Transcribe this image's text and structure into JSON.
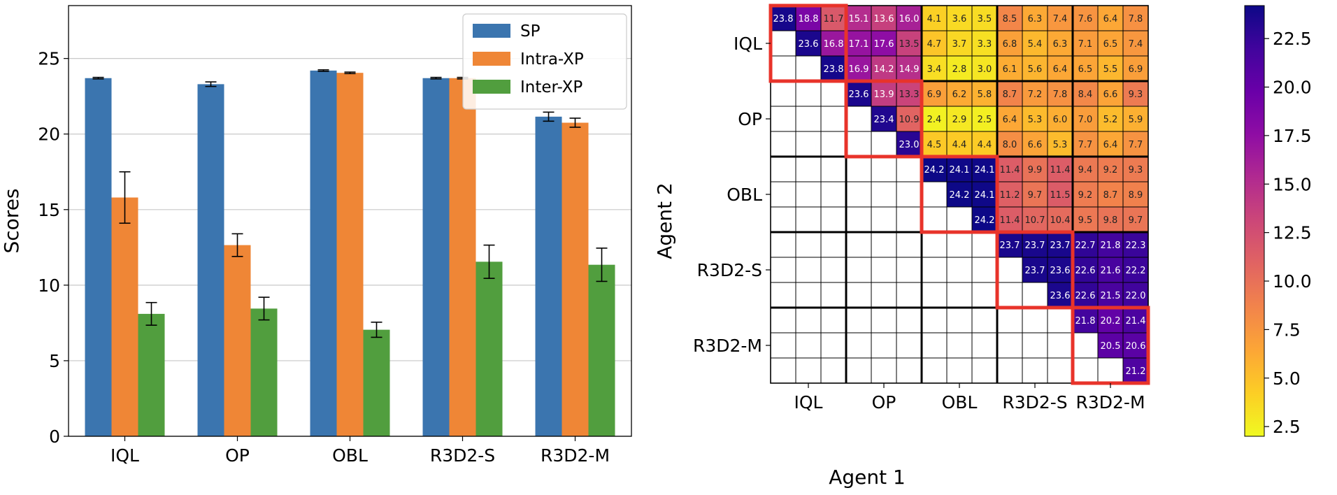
{
  "chart_data": [
    {
      "type": "bar",
      "categories": [
        "IQL",
        "OP",
        "OBL",
        "R3D2-S",
        "R3D2-M"
      ],
      "ylabel": "Scores",
      "xlabel": "",
      "ylim": [
        0,
        28.5
      ],
      "yticks": [
        0,
        5,
        10,
        15,
        20,
        25
      ],
      "grid": "horizontal",
      "legend_position": "top-right",
      "series": [
        {
          "name": "SP",
          "color": "#3b75af",
          "values": [
            23.7,
            23.3,
            24.2,
            23.7,
            21.15
          ],
          "errors": [
            0.05,
            0.15,
            0.05,
            0.05,
            0.3
          ]
        },
        {
          "name": "Intra-XP",
          "color": "#ef8636",
          "values": [
            15.8,
            12.65,
            24.05,
            23.7,
            20.75
          ],
          "errors": [
            1.7,
            0.75,
            0.05,
            0.05,
            0.3
          ]
        },
        {
          "name": "Inter-XP",
          "color": "#519e3e",
          "values": [
            8.1,
            8.45,
            7.05,
            11.55,
            11.35
          ],
          "errors": [
            0.75,
            0.75,
            0.5,
            1.1,
            1.1
          ]
        }
      ]
    },
    {
      "type": "heatmap",
      "xlabel": "Agent 1",
      "ylabel": "Agent 2",
      "groups": [
        "IQL",
        "OP",
        "OBL",
        "R3D2-S",
        "R3D2-M"
      ],
      "colorscale": "plasma_r",
      "colorbar_range": [
        2.0,
        24.2
      ],
      "colorbar_ticks": [
        "2.5",
        "5.0",
        "7.5",
        "10.0",
        "12.5",
        "15.0",
        "17.5",
        "20.0",
        "22.5"
      ],
      "matrix": [
        [
          "23.8",
          "18.8",
          "11.7",
          "15.1",
          "13.6",
          "16.0",
          "4.1",
          "3.6",
          "3.5",
          "8.5",
          "6.3",
          "7.4",
          "7.6",
          "6.4",
          "7.8"
        ],
        [
          "",
          "23.6",
          "16.8",
          "17.1",
          "17.6",
          "13.5",
          "4.7",
          "3.7",
          "3.3",
          "6.8",
          "5.4",
          "6.3",
          "7.1",
          "6.5",
          "7.4"
        ],
        [
          "",
          "",
          "23.8",
          "16.9",
          "14.2",
          "14.9",
          "3.4",
          "2.8",
          "3.0",
          "6.1",
          "5.6",
          "6.4",
          "6.5",
          "5.5",
          "6.9"
        ],
        [
          "",
          "",
          "",
          "23.6",
          "13.9",
          "13.3",
          "6.9",
          "6.2",
          "5.8",
          "8.7",
          "7.2",
          "7.8",
          "8.4",
          "6.6",
          "9.3"
        ],
        [
          "",
          "",
          "",
          "",
          "23.4",
          "10.9",
          "2.4",
          "2.9",
          "2.5",
          "6.4",
          "5.3",
          "6.0",
          "7.0",
          "5.2",
          "5.9"
        ],
        [
          "",
          "",
          "",
          "",
          "",
          "23.0",
          "4.5",
          "4.4",
          "4.4",
          "8.0",
          "6.6",
          "5.3",
          "7.7",
          "6.4",
          "7.7"
        ],
        [
          "",
          "",
          "",
          "",
          "",
          "",
          "24.2",
          "24.1",
          "24.1",
          "11.4",
          "9.9",
          "11.4",
          "9.4",
          "9.2",
          "9.3"
        ],
        [
          "",
          "",
          "",
          "",
          "",
          "",
          "",
          "24.2",
          "24.1",
          "11.2",
          "9.7",
          "11.5",
          "9.2",
          "8.7",
          "8.9"
        ],
        [
          "",
          "",
          "",
          "",
          "",
          "",
          "",
          "",
          "24.2",
          "11.4",
          "10.7",
          "10.4",
          "9.5",
          "9.8",
          "9.7"
        ],
        [
          "",
          "",
          "",
          "",
          "",
          "",
          "",
          "",
          "",
          "23.7",
          "23.7",
          "23.7",
          "22.7",
          "21.8",
          "22.3"
        ],
        [
          "",
          "",
          "",
          "",
          "",
          "",
          "",
          "",
          "",
          "",
          "23.7",
          "23.6",
          "22.6",
          "21.6",
          "22.2"
        ],
        [
          "",
          "",
          "",
          "",
          "",
          "",
          "",
          "",
          "",
          "",
          "",
          "23.6",
          "22.6",
          "21.5",
          "22.0"
        ],
        [
          "",
          "",
          "",
          "",
          "",
          "",
          "",
          "",
          "",
          "",
          "",
          "",
          "21.8",
          "20.2",
          "21.4"
        ],
        [
          "",
          "",
          "",
          "",
          "",
          "",
          "",
          "",
          "",
          "",
          "",
          "",
          "",
          "20.5",
          "20.6"
        ],
        [
          "",
          "",
          "",
          "",
          "",
          "",
          "",
          "",
          "",
          "",
          "",
          "",
          "",
          "",
          "21.2"
        ]
      ]
    }
  ]
}
